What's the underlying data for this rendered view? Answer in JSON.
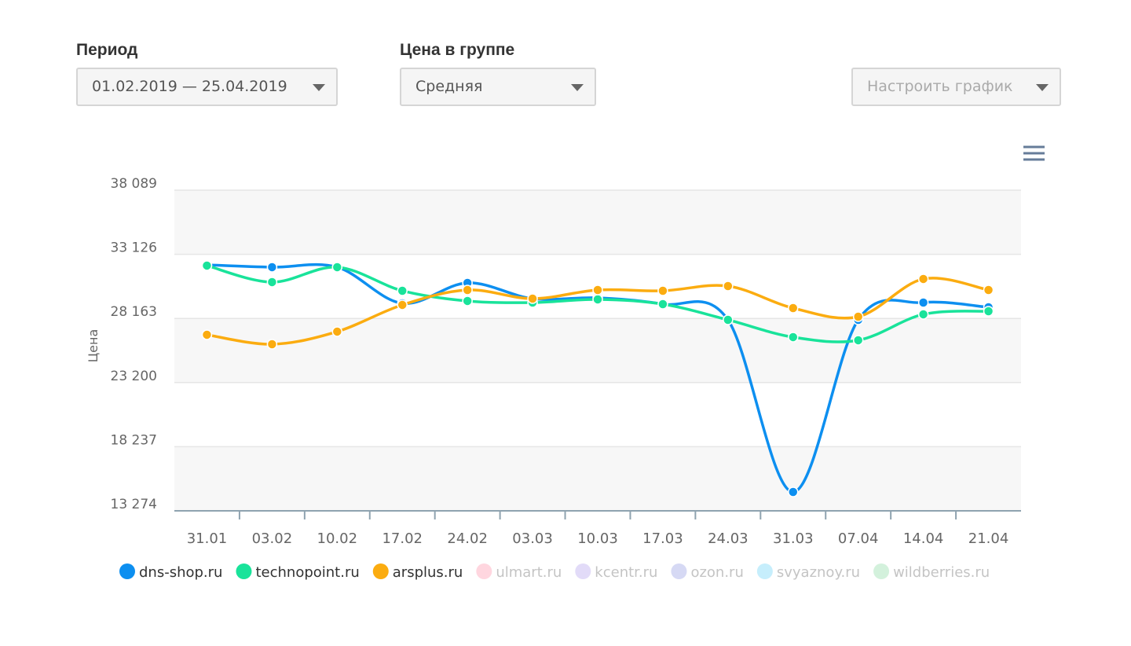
{
  "controls": [
    {
      "label": "Период",
      "value": "01.02.2019 — 25.04.2019"
    },
    {
      "label": "Цена в группе",
      "value": "Средняя"
    },
    {
      "label": null,
      "value": "Настроить график"
    }
  ],
  "chart_data": {
    "type": "line",
    "y_label": "Цена",
    "categories": [
      "31.01",
      "03.02",
      "10.02",
      "17.02",
      "24.02",
      "03.03",
      "10.03",
      "17.03",
      "24.03",
      "31.03",
      "07.04",
      "14.04",
      "21.04"
    ],
    "ylim": [
      13274,
      38089
    ],
    "yticks": [
      {
        "value": 13274,
        "label": "13 274"
      },
      {
        "value": 18237,
        "label": "18 237"
      },
      {
        "value": 23200,
        "label": "23 200"
      },
      {
        "value": 28163,
        "label": "28 163"
      },
      {
        "value": 33126,
        "label": "33 126"
      },
      {
        "value": 38089,
        "label": "38 089"
      }
    ],
    "series": [
      {
        "name": "dns-shop.ru",
        "color": "#0d8ff0",
        "visible": true,
        "values": [
          32313,
          32131,
          32131,
          29332,
          30914,
          29697,
          29758,
          29271,
          28055,
          14734,
          28055,
          29393,
          29028
        ]
      },
      {
        "name": "technopoint.ru",
        "color": "#19e39a",
        "visible": true,
        "values": [
          32252,
          30975,
          32131,
          30305,
          29515,
          29393,
          29637,
          29271,
          28055,
          26717,
          26474,
          28481,
          28724
        ]
      },
      {
        "name": "arsplus.ru",
        "color": "#fbac10",
        "visible": true,
        "values": [
          26900,
          26169,
          27143,
          29211,
          30366,
          29697,
          30366,
          30305,
          30670,
          28967,
          28298,
          31218,
          30366
        ]
      },
      {
        "name": "ulmart.ru",
        "color": "#ffd6df",
        "visible": false
      },
      {
        "name": "kcentr.ru",
        "color": "#e2dbf8",
        "visible": false
      },
      {
        "name": "ozon.ru",
        "color": "#d6d9f4",
        "visible": false
      },
      {
        "name": "svyaznoy.ru",
        "color": "#c6eefc",
        "visible": false
      },
      {
        "name": "wildberries.ru",
        "color": "#d3f1dc",
        "visible": false
      }
    ]
  }
}
